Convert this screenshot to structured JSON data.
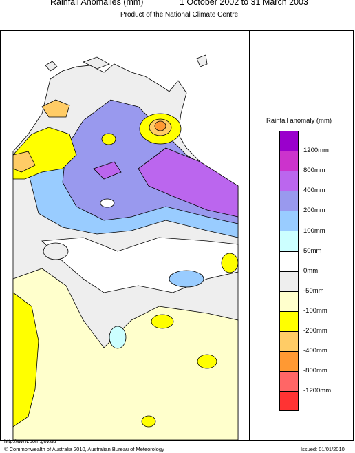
{
  "header": {
    "title": "Rainfall Anomalies (mm)",
    "period": "1 October 2002 to 31 March 2003",
    "subtitle": "Product of the National Climate Centre"
  },
  "legend": {
    "title": "Rainfall anomaly (mm)",
    "classes": [
      {
        "color": "#9a00cc"
      },
      {
        "color": "#cc33cc"
      },
      {
        "color": "#bb66ee"
      },
      {
        "color": "#9999ee"
      },
      {
        "color": "#99ccff"
      },
      {
        "color": "#ccffff"
      },
      {
        "color": "#ffffff"
      },
      {
        "color": "#eeeeee"
      },
      {
        "color": "#ffffcc"
      },
      {
        "color": "#ffff00"
      },
      {
        "color": "#ffcc66"
      },
      {
        "color": "#ff9933"
      },
      {
        "color": "#ff6666"
      },
      {
        "color": "#ff3333"
      }
    ],
    "labels": [
      "1200mm",
      "800mm",
      "400mm",
      "200mm",
      "100mm",
      "50mm",
      "0mm",
      "-50mm",
      "-100mm",
      "-200mm",
      "-400mm",
      "-800mm",
      "-1200mm"
    ]
  },
  "footer": {
    "url": "http://www.bom.gov.au",
    "copyright": "© Commonwealth of Australia 2010, Australian Bureau of Meteorology",
    "issued": "Issued: 01/01/2010"
  }
}
